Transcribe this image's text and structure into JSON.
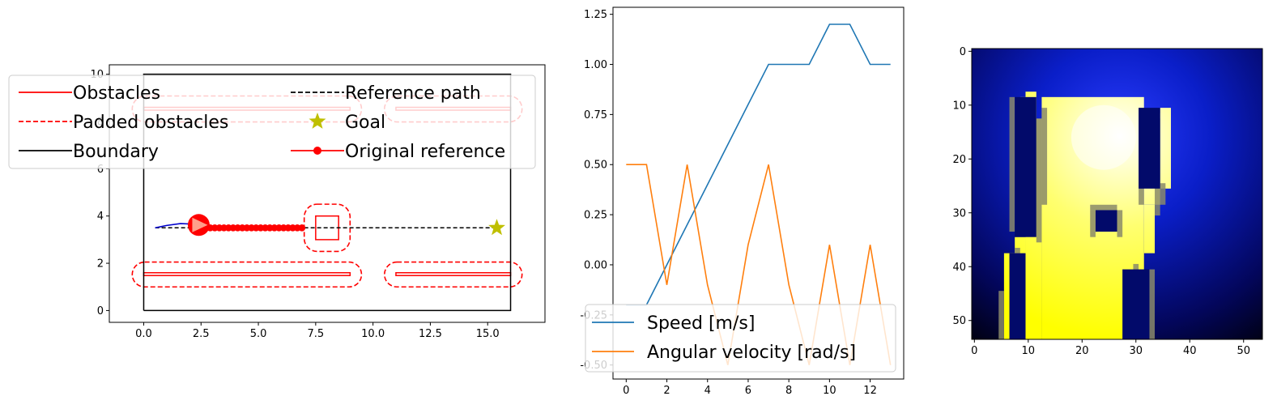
{
  "colors": {
    "obstacle": "#ff0000",
    "boundary": "#000000",
    "goal": "#bfbf00",
    "path": "#000000",
    "trajectory": "#0000cc",
    "speed": "#1f77b4",
    "angular": "#ff7f0e",
    "legend_border": "#cccccc"
  },
  "chart_data": [
    {
      "type": "line",
      "panel": "map",
      "xlim": [
        -1.5,
        17.5
      ],
      "ylim": [
        -0.5,
        10.4
      ],
      "x_ticks": [
        "0.0",
        "2.5",
        "5.0",
        "7.5",
        "10.0",
        "12.5",
        "15.0"
      ],
      "x_tick_values": [
        0,
        2.5,
        5,
        7.5,
        10,
        12.5,
        15
      ],
      "y_ticks": [
        "0",
        "2",
        "4",
        "6",
        "8",
        "10"
      ],
      "y_tick_values": [
        0,
        2,
        4,
        6,
        8,
        10
      ],
      "boundary": [
        [
          0,
          0
        ],
        [
          16,
          0
        ],
        [
          16,
          10
        ],
        [
          0,
          10
        ],
        [
          0,
          0
        ]
      ],
      "obstacles": [
        {
          "name": "bottom-left-wall",
          "x0": 0,
          "x1": 9,
          "y0": 1.48,
          "y1": 1.6
        },
        {
          "name": "bottom-right-wall",
          "x0": 11,
          "x1": 16,
          "y0": 1.48,
          "y1": 1.6
        },
        {
          "name": "top-left-wall",
          "x0": 0,
          "x1": 9,
          "y0": 8.48,
          "y1": 8.6
        },
        {
          "name": "top-right-wall",
          "x0": 11,
          "x1": 16,
          "y0": 8.48,
          "y1": 8.6
        },
        {
          "name": "box-obstacle",
          "x0": 7.5,
          "x1": 8.5,
          "y0": 3.0,
          "y1": 4.0
        }
      ],
      "padded_obstacles": [
        {
          "name": "bottom-left-wall",
          "x0": -0.5,
          "x1": 9.5,
          "y0": 1.0,
          "y1": 2.05
        },
        {
          "name": "bottom-right-wall",
          "x0": 10.5,
          "x1": 16.5,
          "y0": 1.0,
          "y1": 2.05
        },
        {
          "name": "top-left-wall",
          "x0": -0.5,
          "x1": 9.5,
          "y0": 7.98,
          "y1": 9.08
        },
        {
          "name": "top-right-wall",
          "x0": 10.5,
          "x1": 16.5,
          "y0": 7.98,
          "y1": 9.08
        },
        {
          "name": "box-obstacle",
          "x0": 7.0,
          "x1": 9.0,
          "y0": 2.5,
          "y1": 4.5
        }
      ],
      "reference_path": [
        [
          0.5,
          3.5
        ],
        [
          15.5,
          3.5
        ]
      ],
      "goal": [
        15.4,
        3.5
      ],
      "original_reference": {
        "x_start": 2.5,
        "x_end": 6.9,
        "y": 3.5,
        "points": 23
      },
      "robot": {
        "x": 2.4,
        "y": 3.62
      },
      "trajectory": [
        [
          0.5,
          3.5
        ],
        [
          1.0,
          3.6
        ],
        [
          1.6,
          3.68
        ],
        [
          2.1,
          3.66
        ],
        [
          2.4,
          3.62
        ]
      ],
      "legend": {
        "position": "top",
        "items": [
          {
            "label": "Obstacles",
            "style": "solid",
            "color": "#ff0000"
          },
          {
            "label": "Reference path",
            "style": "dashed",
            "color": "#000000"
          },
          {
            "label": "Padded obstacles",
            "style": "dashed",
            "color": "#ff0000"
          },
          {
            "label": "Goal",
            "style": "star",
            "color": "#bfbf00"
          },
          {
            "label": "Boundary",
            "style": "solid",
            "color": "#000000"
          },
          {
            "label": "Original reference",
            "style": "line-dot",
            "color": "#ff0000"
          }
        ]
      }
    },
    {
      "type": "line",
      "panel": "signals",
      "xlim": [
        -0.65,
        13.65
      ],
      "ylim": [
        -0.57,
        1.285
      ],
      "x_ticks": [
        "0",
        "2",
        "4",
        "6",
        "8",
        "10",
        "12"
      ],
      "x_tick_values": [
        0,
        2,
        4,
        6,
        8,
        10,
        12
      ],
      "y_ticks": [
        "-0.50",
        "-0.25",
        "0.00",
        "0.25",
        "0.50",
        "0.75",
        "1.00",
        "1.25"
      ],
      "y_tick_values": [
        -0.5,
        -0.25,
        0,
        0.25,
        0.5,
        0.75,
        1.0,
        1.25
      ],
      "x": [
        0,
        1,
        2,
        3,
        4,
        5,
        6,
        7,
        8,
        9,
        10,
        11,
        12,
        13
      ],
      "series": [
        {
          "name": "Speed [m/s]",
          "color": "#1f77b4",
          "values": [
            -0.2,
            -0.2,
            0.0,
            0.2,
            0.4,
            0.6,
            0.8,
            1.0,
            1.0,
            1.0,
            1.2,
            1.2,
            1.0,
            1.0
          ]
        },
        {
          "name": "Angular velocity [rad/s]",
          "color": "#ff7f0e",
          "values": [
            0.5,
            0.5,
            -0.1,
            0.5,
            -0.1,
            -0.5,
            0.1,
            0.5,
            -0.1,
            -0.5,
            0.1,
            -0.5,
            0.1,
            -0.5
          ]
        }
      ],
      "legend": {
        "position": "lower-left"
      }
    },
    {
      "type": "heatmap",
      "panel": "costmap",
      "xlim": [
        -0.5,
        53.5
      ],
      "ylim": [
        53.5,
        -0.5
      ],
      "x_ticks": [
        "0",
        "10",
        "20",
        "30",
        "40",
        "50"
      ],
      "x_tick_values": [
        0,
        10,
        20,
        30,
        40,
        50
      ],
      "y_ticks": [
        "0",
        "10",
        "20",
        "30",
        "40",
        "50"
      ],
      "y_tick_values": [
        0,
        10,
        20,
        30,
        40,
        50
      ],
      "colormap": "dark blue background, yellow free space, white hot spot",
      "hotspot": {
        "x": 24,
        "y": 16
      }
    }
  ]
}
